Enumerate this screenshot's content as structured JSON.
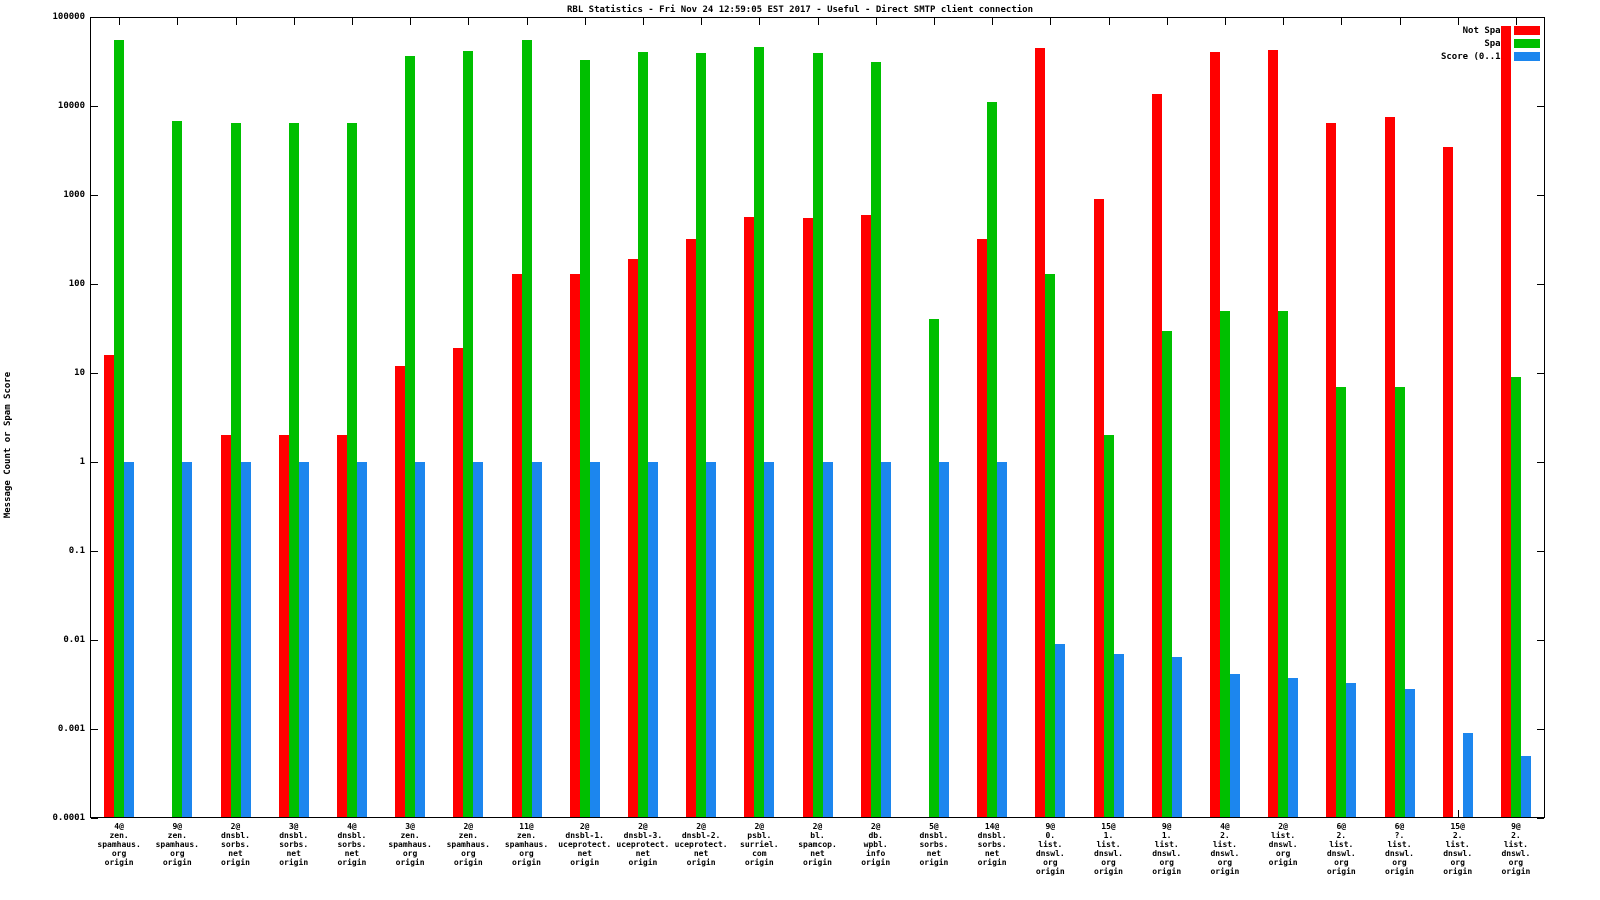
{
  "title": "RBL Statistics - Fri Nov 24 12:59:05 EST 2017 - Useful - Direct SMTP client connection",
  "ylabel": "Message Count or Spam Score",
  "legend": [
    {
      "label": "Not Spam",
      "color": "#ff0000"
    },
    {
      "label": "Spam",
      "color": "#00bf00"
    },
    {
      "label": "Score (0..1)",
      "color": "#1c86ee"
    }
  ],
  "chart_data": {
    "type": "bar",
    "scale": "log",
    "title": "RBL Statistics - Fri Nov 24 12:59:05 EST 2017 - Useful - Direct SMTP client connection",
    "xlabel": "",
    "ylabel": "Message Count or Spam Score",
    "ylim": [
      0.0001,
      100000
    ],
    "yticks": [
      "100000",
      "10000",
      "1000",
      "100",
      "10",
      "1",
      "0.1",
      "0.01",
      "0.001",
      "0.0001"
    ],
    "grid": false,
    "legend_position": "top-right",
    "categories": [
      "4@\nzen.\nspamhaus.\norg\norigin",
      "9@\nzen.\nspamhaus.\norg\norigin",
      "2@\ndnsbl.\nsorbs.\nnet\norigin",
      "3@\ndnsbl.\nsorbs.\nnet\norigin",
      "4@\ndnsbl.\nsorbs.\nnet\norigin",
      "3@\nzen.\nspamhaus.\norg\norigin",
      "2@\nzen.\nspamhaus.\norg\norigin",
      "11@\nzen.\nspamhaus.\norg\norigin",
      "2@\ndnsbl-1.\nuceprotect.\nnet\norigin",
      "2@\ndnsbl-3.\nuceprotect.\nnet\norigin",
      "2@\ndnsbl-2.\nuceprotect.\nnet\norigin",
      "2@\npsbl.\nsurriel.\ncom\norigin",
      "2@\nbl.\nspamcop.\nnet\norigin",
      "2@\ndb.\nwpbl.\ninfo\norigin",
      "5@\ndnsbl.\nsorbs.\nnet\norigin",
      "14@\ndnsbl.\nsorbs.\nnet\norigin",
      "9@\n0.\nlist.\ndnswl.\norg\norigin",
      "15@\n1.\nlist.\ndnswl.\norg\norigin",
      "9@\n1.\nlist.\ndnswl.\norg\norigin",
      "4@\n2.\nlist.\ndnswl.\norg\norigin",
      "2@\nlist.\ndnswl.\norg\norigin",
      "6@\n2.\nlist.\ndnswl.\norg\norigin",
      "6@\n?.\nlist.\ndnswl.\norg\norigin",
      "15@\n2.\nlist.\ndnswl.\norg\norigin",
      "9@\n2.\nlist.\ndnswl.\norg\norigin"
    ],
    "series": [
      {
        "name": "Not Spam",
        "color": "#ff0000",
        "values": [
          16,
          null,
          2,
          2,
          2,
          12,
          19,
          130,
          130,
          190,
          320,
          560,
          550,
          600,
          null,
          320,
          45000,
          900,
          13500,
          40000,
          43000,
          6500,
          7500,
          3500,
          80000
        ]
      },
      {
        "name": "Spam",
        "color": "#00bf00",
        "values": [
          55000,
          6800,
          6500,
          6500,
          6500,
          36000,
          42000,
          55000,
          33000,
          40000,
          39000,
          46000,
          39000,
          31000,
          40,
          11000,
          130,
          2,
          30,
          50,
          50,
          7,
          7,
          null,
          9
        ]
      },
      {
        "name": "Score (0..1)",
        "color": "#1c86ee",
        "values": [
          1,
          1,
          1,
          1,
          1,
          1,
          1,
          1,
          1,
          1,
          1,
          1,
          1,
          1,
          1,
          1,
          0.009,
          0.007,
          0.0065,
          0.0042,
          0.0037,
          0.0033,
          0.0028,
          0.0009,
          0.0005
        ]
      }
    ]
  }
}
